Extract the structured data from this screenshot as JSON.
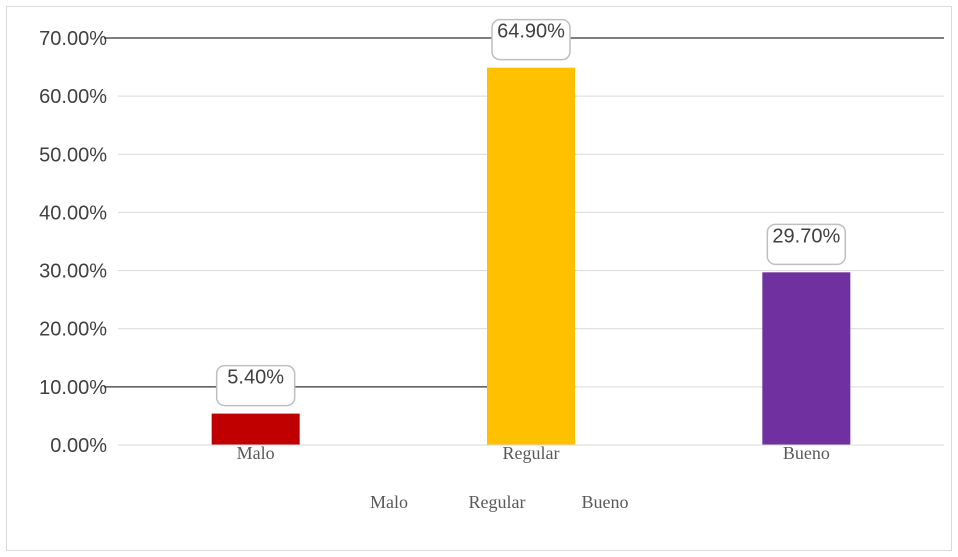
{
  "chart_data": {
    "type": "bar",
    "categories": [
      "Malo",
      "Regular",
      "Bueno"
    ],
    "values": [
      5.4,
      64.9,
      29.7
    ],
    "data_labels": [
      "5.40%",
      "64.90%",
      "29.70%"
    ],
    "colors": [
      "#c00000",
      "#ffc000",
      "#7030a0"
    ],
    "y_ticks": [
      "0.00%",
      "10.00%",
      "20.00%",
      "30.00%",
      "40.00%",
      "50.00%",
      "60.00%",
      "70.00%"
    ],
    "ylim": [
      0,
      70
    ],
    "grid": true,
    "title": "",
    "xlabel": "",
    "ylabel": "",
    "legend": {
      "position": "bottom",
      "entries": [
        "Malo",
        "Regular",
        "Bueno"
      ]
    }
  }
}
